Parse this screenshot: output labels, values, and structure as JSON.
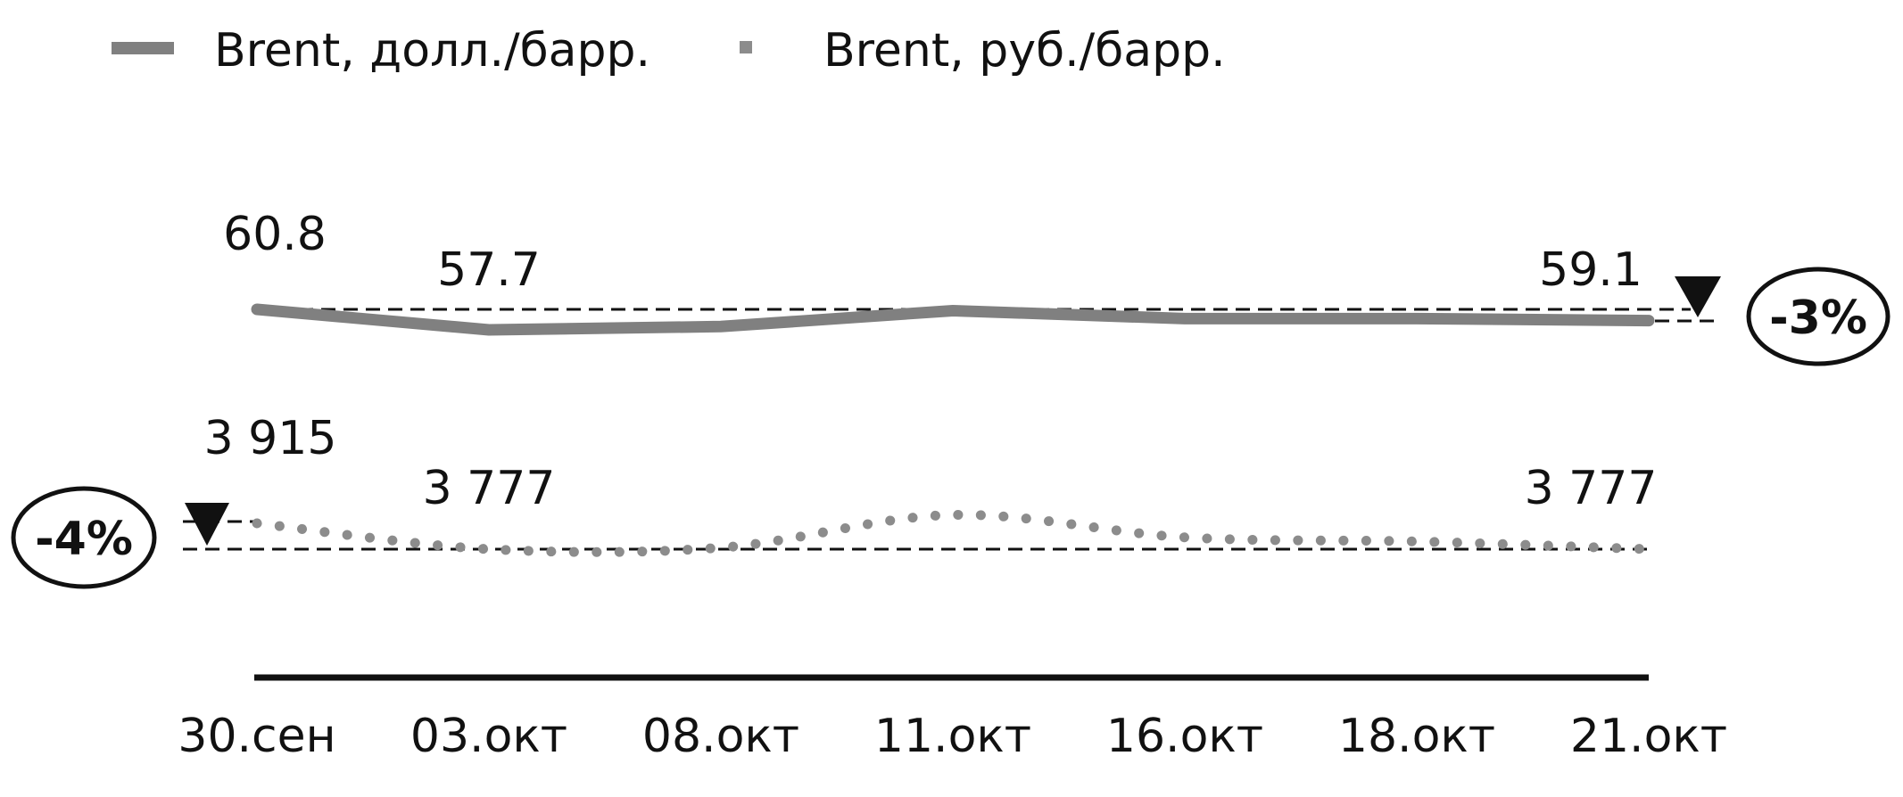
{
  "chart_data": {
    "type": "line",
    "categories": [
      "30.сен",
      "03.окт",
      "08.окт",
      "11.окт",
      "16.окт",
      "18.окт",
      "21.окт"
    ],
    "series": [
      {
        "name": "Brent, долл./барр.",
        "style": "solid",
        "color": "#808080",
        "values": [
          60.8,
          57.7,
          58.2,
          60.6,
          59.4,
          59.4,
          59.1
        ],
        "labels": [
          {
            "index": 0,
            "text": "60.8"
          },
          {
            "index": 1,
            "text": "57.7"
          },
          {
            "index": 6,
            "text": "59.1"
          }
        ],
        "change_badge": "-3%"
      },
      {
        "name": "Brent, руб./барр.",
        "style": "dotted",
        "color": "#8c8c8c",
        "values": [
          3915,
          3777,
          3785,
          3960,
          3840,
          3818,
          3777
        ],
        "labels": [
          {
            "index": 0,
            "text": "3 915"
          },
          {
            "index": 1,
            "text": "3 777"
          },
          {
            "index": 6,
            "text": "3 777"
          }
        ],
        "change_badge": "-4%"
      }
    ],
    "title": "",
    "xlabel": "",
    "ylabel": "",
    "legend_position": "top-left",
    "grid": false
  }
}
